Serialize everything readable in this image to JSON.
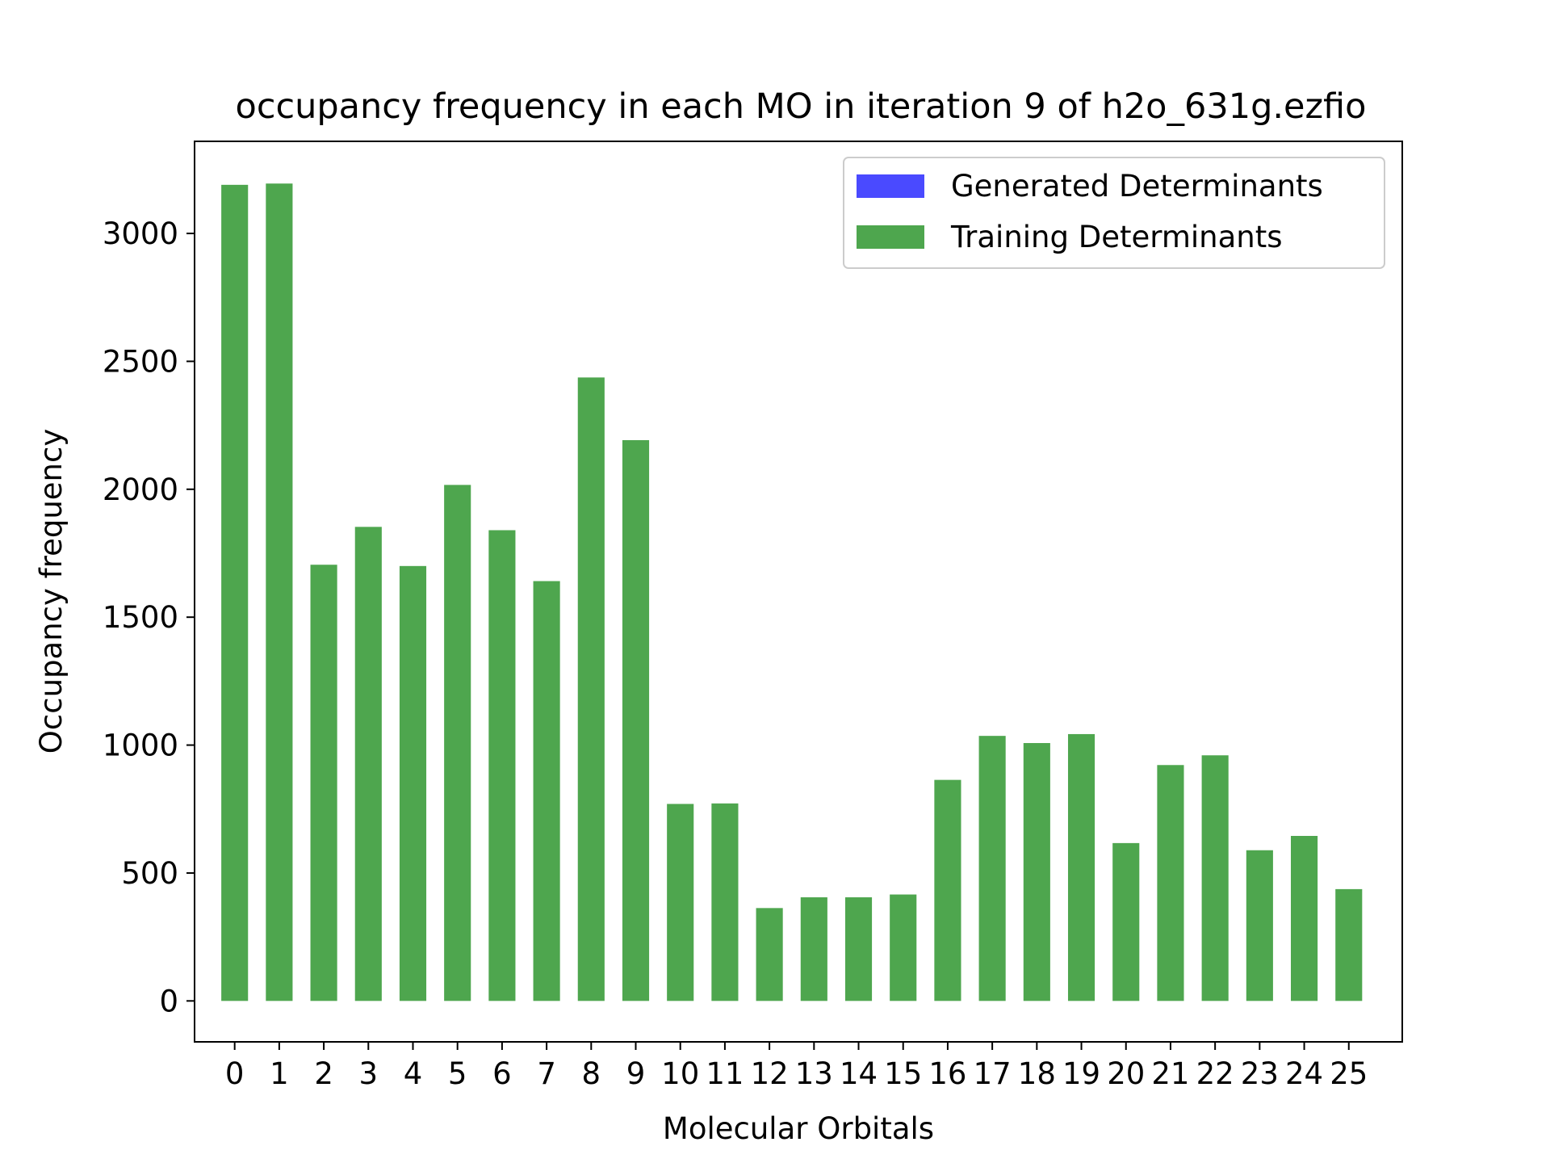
{
  "chart_data": {
    "type": "bar",
    "title": "occupancy frequency in each MO in iteration 9 of h2o_631g.ezfio",
    "xlabel": "Molecular Orbitals",
    "ylabel": "Occupancy frequency",
    "categories": [
      "0",
      "1",
      "2",
      "3",
      "4",
      "5",
      "6",
      "7",
      "8",
      "9",
      "10",
      "11",
      "12",
      "13",
      "14",
      "15",
      "16",
      "17",
      "18",
      "19",
      "20",
      "21",
      "22",
      "23",
      "24",
      "25"
    ],
    "yticks": [
      0,
      500,
      1000,
      1500,
      2000,
      2500,
      3000
    ],
    "ylim": [
      -160,
      3360
    ],
    "xlim": [
      -0.9,
      26.2
    ],
    "grid": false,
    "legend_position": "top-right",
    "series": [
      {
        "name": "Generated Determinants",
        "color": "#4a4aff",
        "values": [
          0,
          0,
          0,
          0,
          0,
          0,
          0,
          0,
          0,
          0,
          0,
          0,
          0,
          0,
          0,
          0,
          0,
          0,
          0,
          0,
          0,
          0,
          0,
          0,
          0,
          0
        ]
      },
      {
        "name": "Training Determinants",
        "color": "#4ea64e",
        "values": [
          3190,
          3195,
          1705,
          1853,
          1700,
          2017,
          1840,
          1641,
          2437,
          2192,
          770,
          772,
          363,
          405,
          405,
          416,
          864,
          1036,
          1008,
          1043,
          617,
          922,
          960,
          589,
          645,
          437
        ]
      }
    ]
  }
}
